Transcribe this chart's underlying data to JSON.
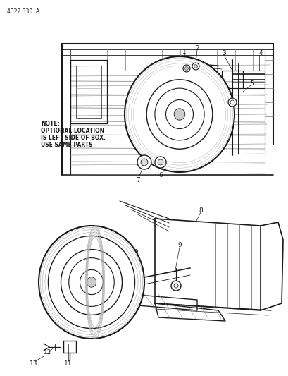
{
  "bg_color": "#ffffff",
  "line_color": "#1a1a1a",
  "figsize": [
    4.1,
    5.33
  ],
  "dpi": 100,
  "part_number": "4322 330  A",
  "note_line1": "NOTE:",
  "note_line2": "OPTIONAL LOCATION",
  "note_line3": "IS LEFT SIDE OF BOX.",
  "note_line4": "USE SAME PARTS"
}
